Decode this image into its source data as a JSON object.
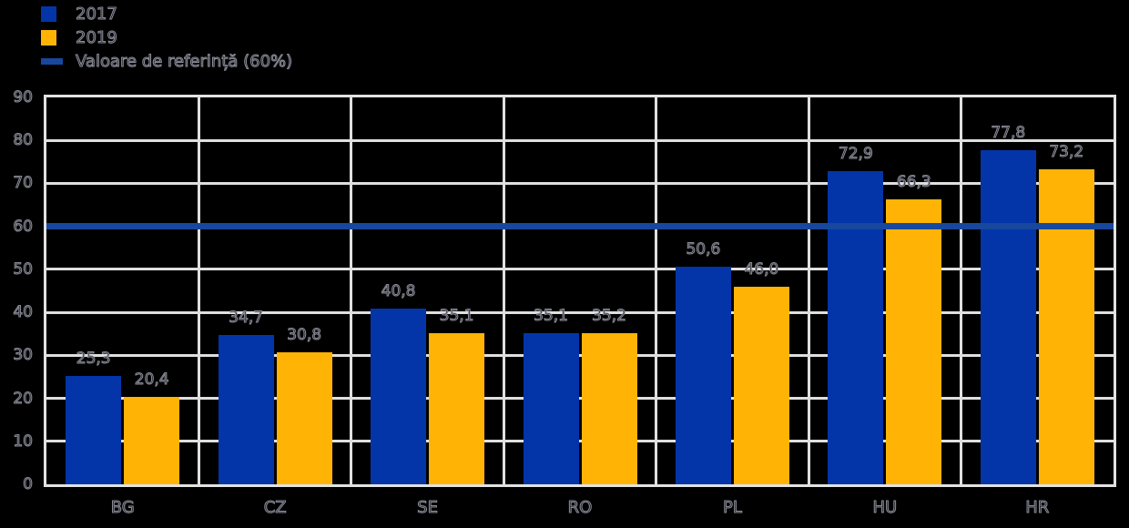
{
  "legend": {
    "items": [
      {
        "label": "2017",
        "swatch": "square",
        "color": "#0435A8"
      },
      {
        "label": "2019",
        "swatch": "square",
        "color": "#FFB405"
      },
      {
        "label": "Valoare de referință (60%)",
        "swatch": "line",
        "color": "#17489E"
      }
    ]
  },
  "chart_data": {
    "type": "bar",
    "title": "",
    "xlabel": "",
    "ylabel": "",
    "categories": [
      "BG",
      "CZ",
      "SE",
      "RO",
      "PL",
      "HU",
      "HR"
    ],
    "series": [
      {
        "name": "2017",
        "color": "#0435A8",
        "values": [
          25.3,
          34.7,
          40.8,
          35.1,
          50.6,
          72.9,
          77.8
        ],
        "labels": [
          "25,3",
          "34,7",
          "40,8",
          "35,1",
          "50,6",
          "72,9",
          "77,8"
        ]
      },
      {
        "name": "2019",
        "color": "#FFB405",
        "values": [
          20.4,
          30.8,
          35.1,
          35.2,
          46.0,
          66.3,
          73.2
        ],
        "labels": [
          "20,4",
          "30,8",
          "35,1",
          "35,2",
          "46,0",
          "66,3",
          "73,2"
        ]
      }
    ],
    "reference_line": {
      "label": "Valoare de referință (60%)",
      "value": 60,
      "color": "#17489E"
    },
    "ylim": [
      0,
      90
    ],
    "ytick_step": 10,
    "yticks": [
      "0",
      "10",
      "20",
      "30",
      "40",
      "50",
      "60",
      "70",
      "80",
      "90"
    ],
    "grid": true,
    "legend_position": "top-left",
    "background": "#000000",
    "gridline_color": "#DFDFDF"
  }
}
